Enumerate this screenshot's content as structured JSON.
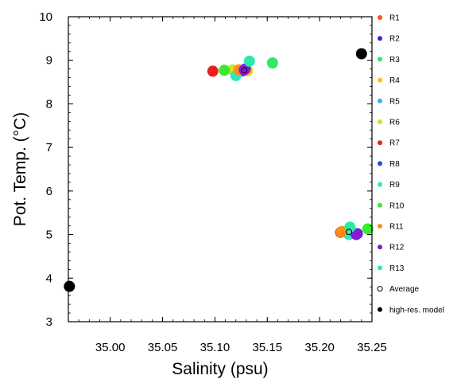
{
  "chart_data": {
    "type": "scatter",
    "xlabel": "Salinity (psu)",
    "ylabel": "Pot. Temp. (°C)",
    "xlim": [
      34.96,
      35.25
    ],
    "ylim": [
      3,
      10
    ],
    "xticks": [
      35.0,
      35.05,
      35.1,
      35.15,
      35.2,
      35.25
    ],
    "xtick_labels": [
      "35.00",
      "35.05",
      "35.10",
      "35.15",
      "35.20",
      "35.25"
    ],
    "yticks": [
      3,
      4,
      5,
      6,
      7,
      8,
      9,
      10
    ],
    "ytick_labels": [
      "3",
      "4",
      "5",
      "6",
      "7",
      "8",
      "9",
      "10"
    ],
    "grid": false,
    "legend_position": "right",
    "series": [
      {
        "name": "R1",
        "color": "#f4511e",
        "points": [
          [
            35.125,
            8.76
          ],
          [
            35.22,
            5.05
          ]
        ]
      },
      {
        "name": "R2",
        "color": "#3d1fd8",
        "points": [
          [
            35.127,
            8.76
          ],
          [
            35.236,
            5.02
          ]
        ]
      },
      {
        "name": "R3",
        "color": "#2ee866",
        "points": [
          [
            35.155,
            8.94
          ],
          [
            35.23,
            5.1
          ]
        ]
      },
      {
        "name": "R4",
        "color": "#ffc107",
        "points": [
          [
            35.131,
            8.76
          ],
          [
            35.226,
            5.07
          ]
        ]
      },
      {
        "name": "R5",
        "color": "#29b6f6",
        "points": [
          [
            35.119,
            8.74
          ],
          [
            35.227,
            5.04
          ]
        ]
      },
      {
        "name": "R6",
        "color": "#c6e82a",
        "points": [
          [
            35.117,
            8.78
          ],
          [
            35.222,
            5.08
          ]
        ]
      },
      {
        "name": "R7",
        "color": "#e8201a",
        "points": [
          [
            35.098,
            8.75
          ],
          [
            35.221,
            5.06
          ]
        ]
      },
      {
        "name": "R8",
        "color": "#1a4fe0",
        "points": [
          [
            35.129,
            8.8
          ],
          [
            35.229,
            5.05
          ]
        ]
      },
      {
        "name": "R9",
        "color": "#2ee8c0",
        "points": [
          [
            35.12,
            8.65
          ],
          [
            35.228,
            5.0
          ]
        ]
      },
      {
        "name": "R10",
        "color": "#3ee82a",
        "points": [
          [
            35.109,
            8.77
          ],
          [
            35.246,
            5.13
          ]
        ]
      },
      {
        "name": "R11",
        "color": "#ff8c1a",
        "points": [
          [
            35.123,
            8.78
          ],
          [
            35.221,
            5.06
          ]
        ]
      },
      {
        "name": "R12",
        "color": "#8a1ad8",
        "points": [
          [
            35.128,
            8.78
          ],
          [
            35.235,
            5.0
          ]
        ]
      },
      {
        "name": "R13",
        "color": "#2ee8a8",
        "points": [
          [
            35.133,
            8.98
          ],
          [
            35.229,
            5.17
          ]
        ]
      },
      {
        "name": "Average",
        "color": "#000000",
        "marker": "open-circle",
        "points": [
          [
            35.128,
            8.77
          ],
          [
            35.228,
            5.06
          ]
        ]
      },
      {
        "name": "high-res. model",
        "color": "#000000",
        "points": [
          [
            34.961,
            3.81
          ],
          [
            35.24,
            9.15
          ]
        ]
      }
    ]
  }
}
